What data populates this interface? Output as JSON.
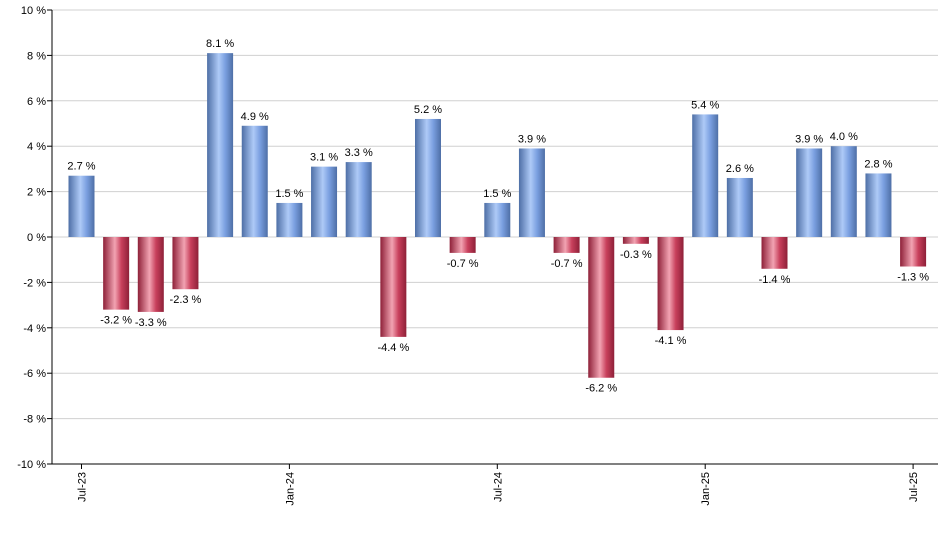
{
  "chart_data": {
    "type": "bar",
    "title": "",
    "xlabel": "",
    "ylabel": "",
    "ylim": [
      -10,
      10
    ],
    "yticks": [
      10,
      8,
      6,
      4,
      2,
      0,
      -2,
      -4,
      -6,
      -8,
      -10
    ],
    "ytick_suffix": " %",
    "grid": true,
    "legend": "none",
    "x_tick_labels": [
      {
        "index": 0,
        "label": "Jul-23"
      },
      {
        "index": 6,
        "label": "Jan-24"
      },
      {
        "index": 12,
        "label": "Jul-24"
      },
      {
        "index": 18,
        "label": "Jan-25"
      },
      {
        "index": 24,
        "label": "Jul-25"
      }
    ],
    "categories": [
      "Jul-23",
      "Aug-23",
      "Sep-23",
      "Oct-23",
      "Nov-23",
      "Dec-23",
      "Jan-24",
      "Feb-24",
      "Mar-24",
      "Apr-24",
      "May-24",
      "Jun-24",
      "Jul-24",
      "Aug-24",
      "Sep-24",
      "Oct-24",
      "Nov-24",
      "Dec-24",
      "Jan-25",
      "Feb-25",
      "Mar-25",
      "Apr-25",
      "May-25",
      "Jun-25",
      "Jul-25"
    ],
    "values": [
      2.7,
      -3.2,
      -3.3,
      -2.3,
      8.1,
      4.9,
      1.5,
      3.1,
      3.3,
      -4.4,
      5.2,
      -0.7,
      1.5,
      3.9,
      -0.7,
      -6.2,
      -0.3,
      -4.1,
      5.4,
      2.6,
      -1.4,
      3.9,
      4.0,
      2.8,
      -1.3
    ],
    "data_labels": [
      "2.7 %",
      "-3.2 %",
      "-3.3 %",
      "-2.3 %",
      "8.1 %",
      "4.9 %",
      "1.5 %",
      "3.1 %",
      "3.3 %",
      "-4.4 %",
      "5.2 %",
      "-0.7 %",
      "1.5 %",
      "3.9 %",
      "-0.7 %",
      "-6.2 %",
      "-0.3 %",
      "-4.1 %",
      "5.4 %",
      "2.6 %",
      "-1.4 %",
      "3.9 %",
      "4.0 %",
      "2.8 %",
      "-1.3 %"
    ],
    "colors": {
      "positive": "#7a9fe0",
      "positive_light": "#aecaf7",
      "positive_dark": "#4e6fa6",
      "negative": "#c8405c",
      "negative_light": "#f2a3b2",
      "negative_dark": "#8e2038",
      "grid": "#d0d0d0",
      "axis": "#000000"
    }
  }
}
